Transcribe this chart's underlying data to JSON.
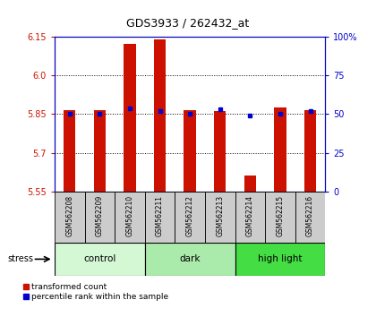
{
  "title": "GDS3933 / 262432_at",
  "categories": [
    "GSM562208",
    "GSM562209",
    "GSM562210",
    "GSM562211",
    "GSM562212",
    "GSM562213",
    "GSM562214",
    "GSM562215",
    "GSM562216"
  ],
  "transformed_counts": [
    5.866,
    5.866,
    6.12,
    6.138,
    5.866,
    5.862,
    5.614,
    5.876,
    5.866
  ],
  "percentile_ranks": [
    50,
    50,
    54,
    52,
    50,
    53,
    49,
    50,
    52
  ],
  "groups": [
    {
      "label": "control",
      "indices": [
        0,
        1,
        2
      ],
      "color": "#d4f7d4"
    },
    {
      "label": "dark",
      "indices": [
        3,
        4,
        5
      ],
      "color": "#aaeaaa"
    },
    {
      "label": "high light",
      "indices": [
        6,
        7,
        8
      ],
      "color": "#44dd44"
    }
  ],
  "ylim_left": [
    5.55,
    6.15
  ],
  "ylim_right": [
    0,
    100
  ],
  "yticks_left": [
    5.55,
    5.7,
    5.85,
    6.0,
    6.15
  ],
  "yticks_right": [
    0,
    25,
    50,
    75,
    100
  ],
  "bar_color": "#cc1100",
  "dot_color": "#0000cc",
  "label_area_color": "#cccccc",
  "stress_label": "stress",
  "legend_tc": "transformed count",
  "legend_pr": "percentile rank within the sample",
  "bar_width": 0.4
}
